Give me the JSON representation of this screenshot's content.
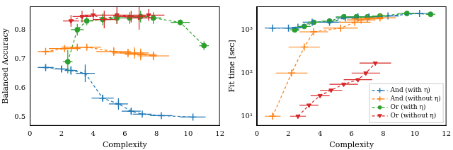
{
  "chart_data": [
    {
      "type": "line",
      "x_label": "Complexity",
      "y_label": "Balanced Accuracy",
      "xlim": [
        0,
        12
      ],
      "xticks": [
        0,
        2,
        4,
        6,
        8,
        10,
        12
      ],
      "ylim": [
        0.47,
        0.88
      ],
      "yticks": [
        0.5,
        0.6,
        0.7,
        0.8
      ],
      "grid": false,
      "series": [
        {
          "color": "#1f77b4",
          "marker": "plus",
          "line_style": "dashed",
          "x": [
            1.0,
            2.0,
            2.6,
            3.5,
            4.6,
            5.6,
            6.4,
            7.1,
            8.3,
            10.3
          ],
          "values": [
            0.67,
            0.665,
            0.66,
            0.65,
            0.565,
            0.545,
            0.52,
            0.51,
            0.505,
            0.5
          ],
          "xerr": [
            0.5,
            0.5,
            0.4,
            0.6,
            0.7,
            0.6,
            0.6,
            0.6,
            0.7,
            0.8
          ],
          "yerr": [
            0.01,
            0.01,
            0.015,
            0.03,
            0.01,
            0.02,
            0.01,
            0.005,
            0.005,
            0.002
          ]
        },
        {
          "color": "#ff7f0e",
          "marker": "plus",
          "line_style": "dashed",
          "x": [
            1.0,
            2.2,
            3.0,
            3.6,
            5.3,
            6.2,
            6.6,
            7.0,
            7.8
          ],
          "values": [
            0.725,
            0.735,
            0.74,
            0.74,
            0.725,
            0.72,
            0.72,
            0.715,
            0.71
          ],
          "xerr": [
            0.5,
            1.0,
            1.0,
            0.9,
            1.1,
            1.0,
            0.9,
            1.0,
            1.0
          ],
          "yerr": [
            0.005,
            0.005,
            0.005,
            0.005,
            0.015,
            0.015,
            0.02,
            0.02,
            0.015
          ]
        },
        {
          "color": "#2ca02c",
          "marker": "circle",
          "line_style": "dashed",
          "x": [
            2.4,
            3.0,
            3.6,
            4.6,
            5.5,
            6.3,
            7.0,
            7.8,
            9.5,
            11.0
          ],
          "values": [
            0.69,
            0.8,
            0.83,
            0.835,
            0.84,
            0.84,
            0.845,
            0.84,
            0.825,
            0.745
          ],
          "xerr": [
            0.3,
            0.4,
            0.4,
            0.5,
            0.5,
            0.5,
            0.5,
            0.5,
            0.6,
            0.3
          ],
          "yerr": [
            0.04,
            0.02,
            0.015,
            0.02,
            0.02,
            0.02,
            0.02,
            0.02,
            0.01,
            0.015
          ]
        },
        {
          "color": "#d62728",
          "marker": "triangle_down",
          "line_style": "dashed",
          "x": [
            2.6,
            3.3,
            4.0,
            4.7,
            5.5,
            6.4,
            6.9,
            7.5
          ],
          "values": [
            0.83,
            0.845,
            0.85,
            0.835,
            0.85,
            0.845,
            0.84,
            0.85
          ],
          "xerr": [
            0.5,
            0.6,
            0.6,
            0.7,
            0.9,
            0.9,
            0.9,
            1.0
          ],
          "yerr": [
            0.02,
            0.02,
            0.02,
            0.03,
            0.03,
            0.02,
            0.04,
            0.02
          ]
        }
      ]
    },
    {
      "type": "line",
      "x_label": "Complexity",
      "y_label": "Fit time [sec]",
      "xlim": [
        0,
        12
      ],
      "xticks": [
        0,
        2,
        4,
        6,
        8,
        10,
        12
      ],
      "ylim": [
        6,
        3500
      ],
      "yticks": [
        {
          "value": 10,
          "label": "10¹"
        },
        {
          "value": 100,
          "label": "10²"
        },
        {
          "value": 1000,
          "label": "10³"
        }
      ],
      "log": "y",
      "grid": false,
      "legend": "lower right",
      "series": [
        {
          "name": "And (with η)",
          "color": "#1f77b4",
          "marker": "plus",
          "line_style": "dashed",
          "x": [
            1.0,
            2.0,
            2.6,
            3.5,
            4.6,
            5.6,
            6.4,
            7.1,
            8.3,
            10.3
          ],
          "values": [
            1100,
            1100,
            1150,
            1500,
            1500,
            1900,
            2000,
            2000,
            2100,
            2400
          ],
          "xerr": [
            0.5,
            0.5,
            0.4,
            0.6,
            0.7,
            0.6,
            0.6,
            0.6,
            0.7,
            0.8
          ]
        },
        {
          "name": "And (without η)",
          "color": "#ff7f0e",
          "marker": "plus",
          "line_style": "dashed",
          "x": [
            1.0,
            2.2,
            3.0,
            3.6,
            5.3,
            6.2,
            6.6,
            7.0,
            7.8
          ],
          "values": [
            10,
            100,
            400,
            900,
            1100,
            1500,
            1700,
            1800,
            1900
          ],
          "xerr": [
            0.5,
            1.0,
            1.0,
            0.9,
            1.1,
            1.0,
            0.9,
            1.0,
            1.0
          ]
        },
        {
          "name": "Or (with η)",
          "color": "#2ca02c",
          "marker": "circle",
          "line_style": "dashed",
          "x": [
            2.4,
            3.0,
            3.6,
            4.6,
            5.5,
            6.3,
            7.0,
            7.8,
            9.5,
            11.0
          ],
          "values": [
            1000,
            1200,
            1500,
            1600,
            2000,
            2000,
            2000,
            2100,
            2400,
            2300
          ],
          "xerr": [
            0.3,
            0.4,
            0.4,
            0.5,
            0.5,
            0.5,
            0.5,
            0.5,
            0.6,
            0.3
          ]
        },
        {
          "name": "Or (without η)",
          "color": "#d62728",
          "marker": "triangle_down",
          "line_style": "dashed",
          "x": [
            2.6,
            3.3,
            4.0,
            4.7,
            5.5,
            6.4,
            6.9,
            7.5
          ],
          "values": [
            10,
            18,
            30,
            40,
            55,
            70,
            100,
            170
          ],
          "xerr": [
            0.5,
            0.6,
            0.6,
            0.7,
            0.9,
            0.9,
            0.9,
            1.0
          ]
        }
      ]
    }
  ]
}
